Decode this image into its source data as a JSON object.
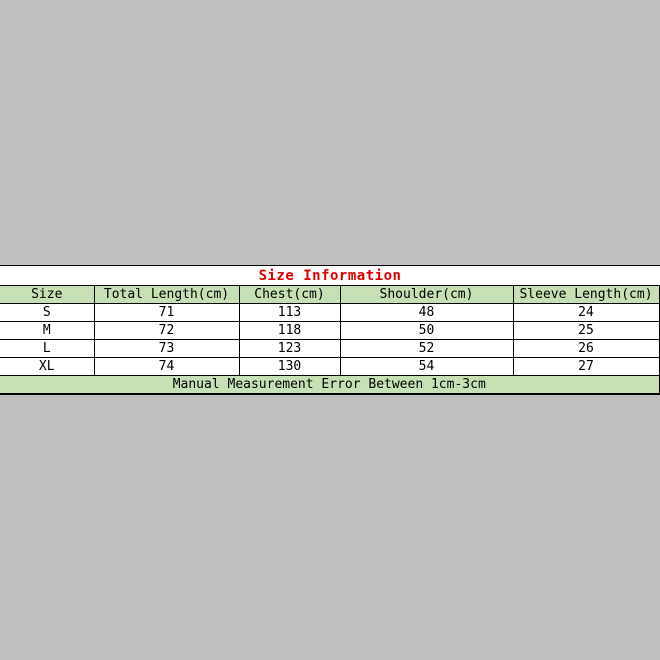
{
  "title": "Size Information",
  "columns": [
    "Size",
    "Total Length(cm)",
    "Chest(cm)",
    "Shoulder(cm)",
    "Sleeve Length(cm)"
  ],
  "rows": [
    [
      "S",
      "71",
      "113",
      "48",
      "24"
    ],
    [
      "M",
      "72",
      "118",
      "50",
      "25"
    ],
    [
      "L",
      "73",
      "123",
      "52",
      "26"
    ],
    [
      "XL",
      "74",
      "130",
      "54",
      "27"
    ]
  ],
  "footer": "Manual Measurement Error Between 1cm-3cm",
  "colors": {
    "background": "#c0c0c0",
    "header_fill": "#c6e0b4",
    "title": "#e00000"
  }
}
